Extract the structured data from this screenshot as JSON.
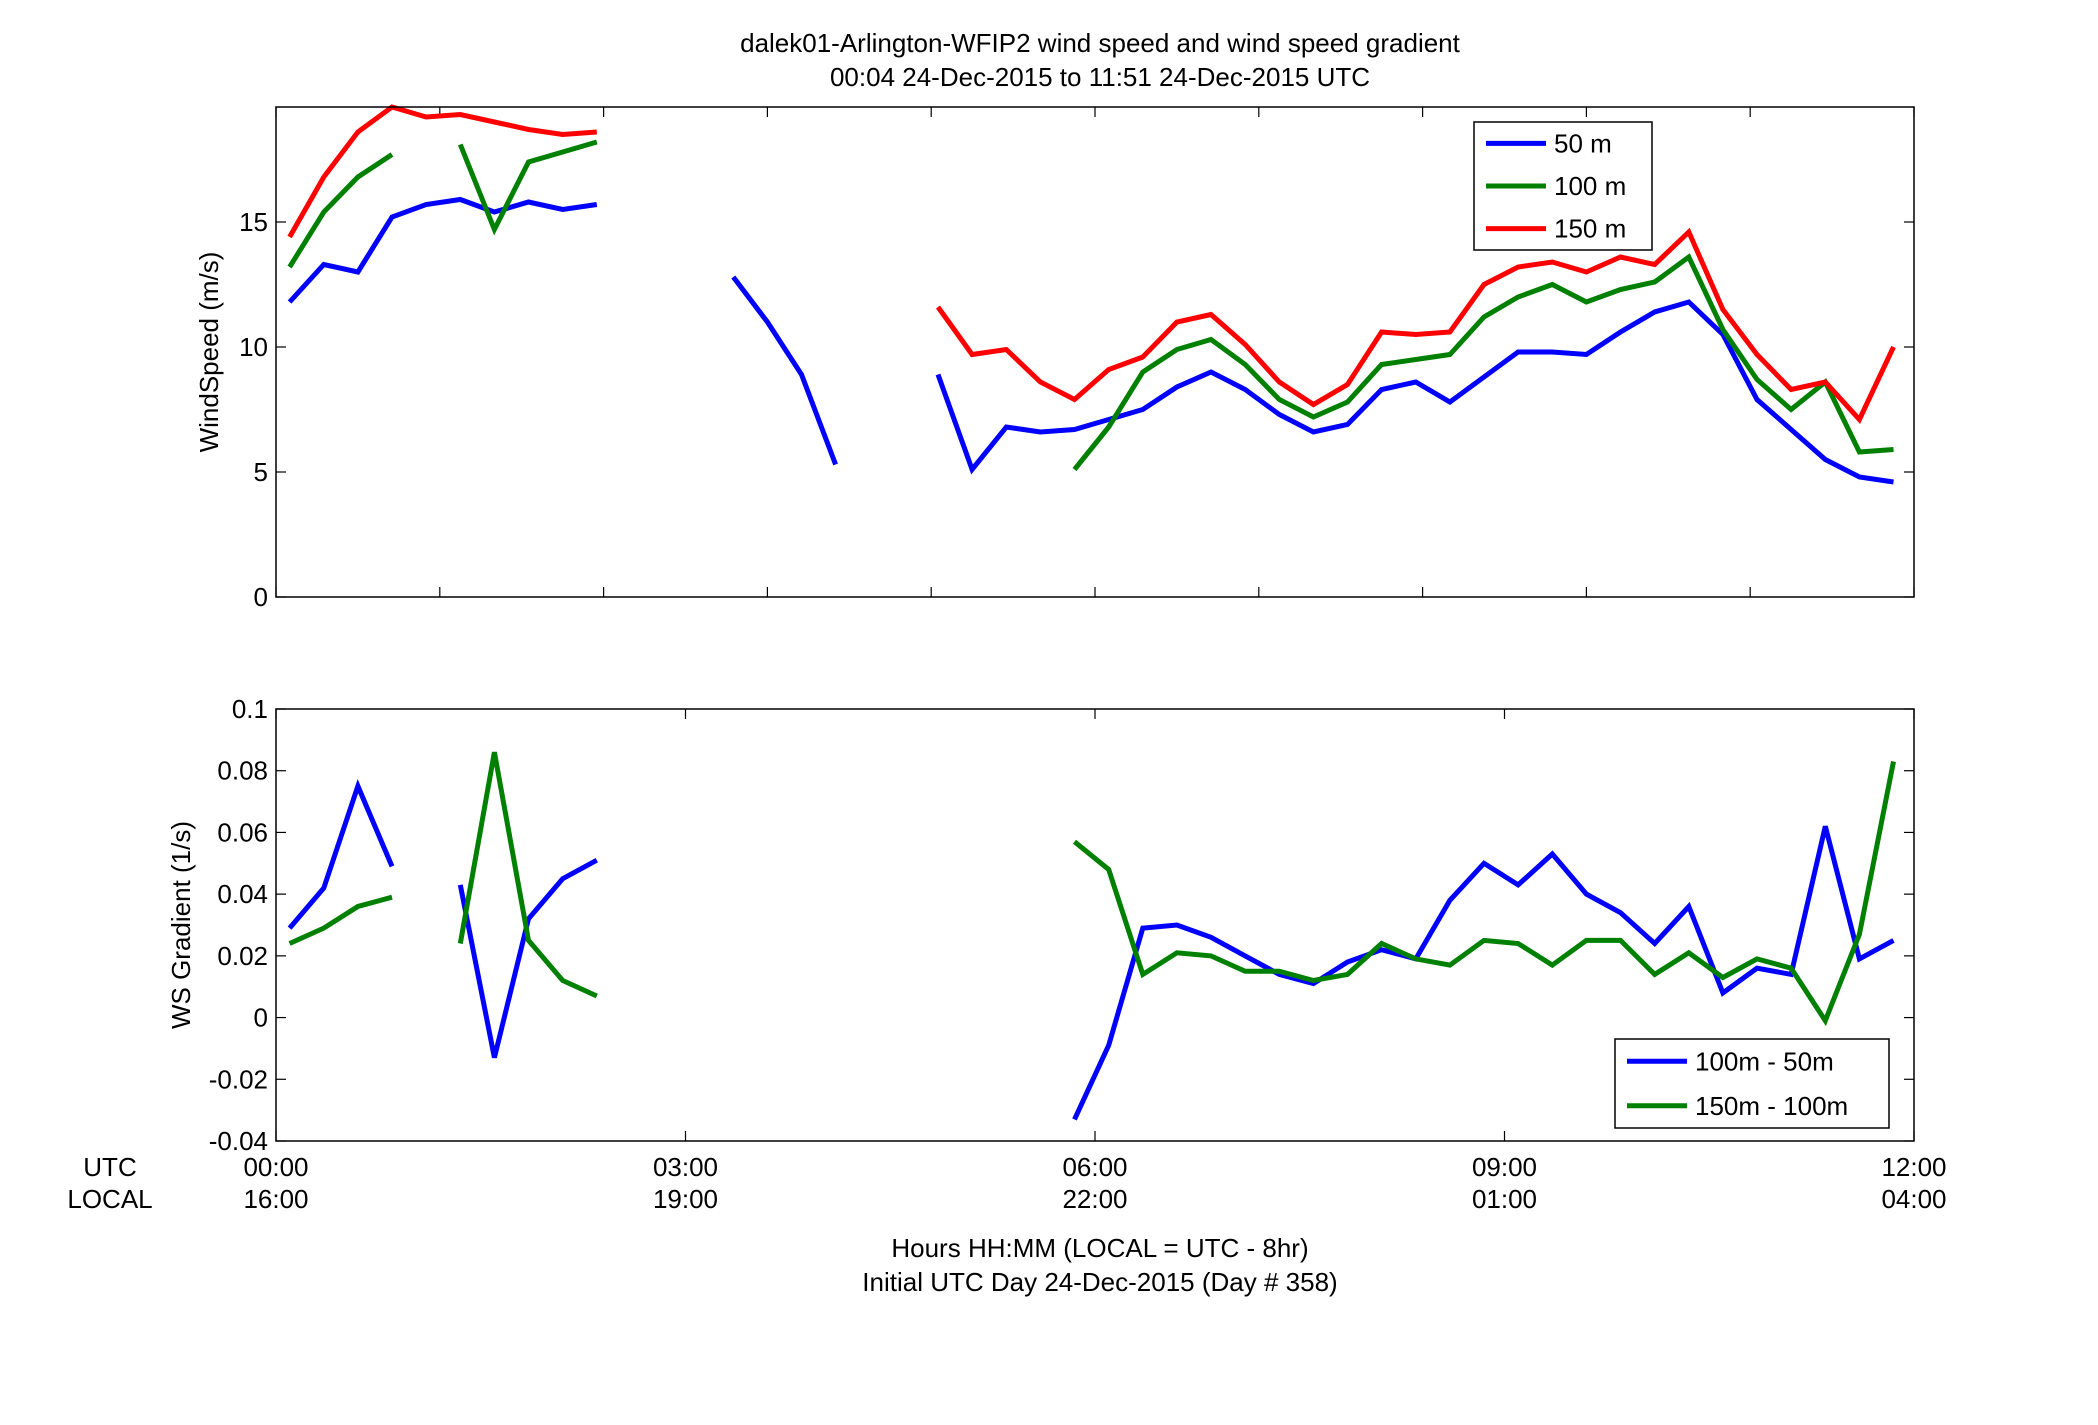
{
  "figure": {
    "title_line1": "dalek01-Arlington-WFIP2  wind speed and wind speed gradient",
    "title_line2": "00:04 24-Dec-2015 to 11:51 24-Dec-2015  UTC",
    "xlabel_line1": "Hours HH:MM  (LOCAL = UTC - 8hr)",
    "xlabel_line2": "Initial UTC Day 24-Dec-2015 (Day # 358)",
    "utc_label": "UTC",
    "local_label": "LOCAL",
    "x_ticks_utc": [
      "00:00",
      "03:00",
      "06:00",
      "09:00",
      "12:00"
    ],
    "x_ticks_local": [
      "16:00",
      "19:00",
      "22:00",
      "01:00",
      "04:00"
    ]
  },
  "chart_data": [
    {
      "type": "line",
      "ylabel": "WindSpeed (m/s)",
      "ylim": [
        0,
        19.6
      ],
      "xlim": [
        0,
        12
      ],
      "yticks": [
        0,
        5,
        10,
        15
      ],
      "ytick_labels": [
        "0",
        "5",
        "10",
        "15"
      ],
      "x_ticks_minor": [
        0,
        1.2,
        2.4,
        3.6,
        4.8,
        6,
        7.2,
        8.4,
        9.6,
        10.8,
        12
      ],
      "legend_position": "top-right",
      "grid": false,
      "x": [
        0.1,
        0.35,
        0.6,
        0.85,
        1.1,
        1.35,
        1.6,
        1.85,
        2.1,
        2.35,
        2.6,
        2.85,
        3.1,
        3.35,
        3.6,
        3.85,
        4.1,
        4.35,
        4.6,
        4.85,
        5.1,
        5.35,
        5.6,
        5.85,
        6.1,
        6.35,
        6.6,
        6.85,
        7.1,
        7.35,
        7.6,
        7.85,
        8.1,
        8.35,
        8.6,
        8.85,
        9.1,
        9.35,
        9.6,
        9.85,
        10.1,
        10.35,
        10.6,
        10.85,
        11.1,
        11.35,
        11.6,
        11.85
      ],
      "series": [
        {
          "name": "50 m",
          "color": "#0000ff",
          "values": [
            11.8,
            13.3,
            13.0,
            15.2,
            15.7,
            15.9,
            15.4,
            15.8,
            15.5,
            15.7,
            null,
            null,
            null,
            12.8,
            11.0,
            8.9,
            5.3,
            null,
            null,
            8.9,
            5.1,
            6.8,
            6.6,
            6.7,
            7.1,
            7.5,
            8.4,
            9.0,
            8.3,
            7.3,
            6.6,
            6.9,
            8.3,
            8.6,
            7.8,
            8.8,
            9.8,
            9.8,
            9.7,
            10.6,
            11.4,
            11.8,
            10.5,
            7.9,
            6.7,
            5.5,
            4.8,
            4.6
          ]
        },
        {
          "name": "100 m",
          "color": "#008000",
          "values": [
            13.2,
            15.4,
            16.8,
            17.7,
            null,
            18.1,
            14.7,
            17.4,
            17.8,
            18.2,
            null,
            null,
            null,
            null,
            null,
            null,
            null,
            null,
            null,
            null,
            null,
            null,
            null,
            5.1,
            6.8,
            9.0,
            9.9,
            10.3,
            9.3,
            7.9,
            7.2,
            7.8,
            9.3,
            9.5,
            9.7,
            11.2,
            12.0,
            12.5,
            11.8,
            12.3,
            12.6,
            13.6,
            10.7,
            8.7,
            7.5,
            8.6,
            5.8,
            5.9
          ]
        },
        {
          "name": "150 m",
          "color": "#ff0000",
          "values": [
            14.4,
            16.8,
            18.6,
            19.6,
            19.2,
            19.3,
            19.0,
            18.7,
            18.5,
            18.6,
            null,
            null,
            null,
            null,
            null,
            null,
            null,
            null,
            null,
            11.6,
            9.7,
            9.9,
            8.6,
            7.9,
            9.1,
            9.6,
            11.0,
            11.3,
            10.1,
            8.6,
            7.7,
            8.5,
            10.6,
            10.5,
            10.6,
            12.5,
            13.2,
            13.4,
            13.0,
            13.6,
            13.3,
            14.6,
            11.5,
            9.7,
            8.3,
            8.6,
            7.1,
            10.0
          ]
        }
      ]
    },
    {
      "type": "line",
      "ylabel": "WS Gradient (1/s)",
      "ylim": [
        -0.04,
        0.1
      ],
      "xlim": [
        0,
        12
      ],
      "yticks": [
        -0.04,
        -0.02,
        0,
        0.02,
        0.04,
        0.06,
        0.08,
        0.1
      ],
      "ytick_labels": [
        "-0.04",
        "-0.02",
        "0",
        "0.02",
        "0.04",
        "0.06",
        "0.08",
        "0.1"
      ],
      "x_ticks_major": [
        0,
        3,
        6,
        9,
        12
      ],
      "legend_position": "bottom-right",
      "grid": false,
      "x": [
        0.1,
        0.35,
        0.6,
        0.85,
        1.1,
        1.35,
        1.6,
        1.85,
        2.1,
        2.35,
        2.6,
        2.85,
        3.1,
        3.35,
        3.6,
        3.85,
        4.1,
        4.35,
        4.6,
        4.85,
        5.1,
        5.35,
        5.6,
        5.85,
        6.1,
        6.35,
        6.6,
        6.85,
        7.1,
        7.35,
        7.6,
        7.85,
        8.1,
        8.35,
        8.6,
        8.85,
        9.1,
        9.35,
        9.6,
        9.85,
        10.1,
        10.35,
        10.6,
        10.85,
        11.1,
        11.35,
        11.6,
        11.85
      ],
      "series": [
        {
          "name": "100m - 50m",
          "color": "#0000ff",
          "values": [
            0.029,
            0.042,
            0.075,
            0.049,
            null,
            0.043,
            -0.013,
            0.032,
            0.045,
            0.051,
            null,
            null,
            null,
            null,
            null,
            null,
            null,
            null,
            null,
            null,
            null,
            null,
            null,
            -0.033,
            -0.009,
            0.029,
            0.03,
            0.026,
            0.02,
            0.014,
            0.011,
            0.018,
            0.022,
            0.019,
            0.038,
            0.05,
            0.043,
            0.053,
            0.04,
            0.034,
            0.024,
            0.036,
            0.008,
            0.016,
            0.014,
            0.062,
            0.019,
            0.025
          ]
        },
        {
          "name": "150m - 100m",
          "color": "#008000",
          "values": [
            0.024,
            0.029,
            0.036,
            0.039,
            null,
            0.024,
            0.086,
            0.025,
            0.012,
            0.007,
            null,
            null,
            null,
            null,
            null,
            null,
            null,
            null,
            null,
            null,
            null,
            null,
            null,
            0.057,
            0.048,
            0.014,
            0.021,
            0.02,
            0.015,
            0.015,
            0.012,
            0.014,
            0.024,
            0.019,
            0.017,
            0.025,
            0.024,
            0.017,
            0.025,
            0.025,
            0.014,
            0.021,
            0.013,
            0.019,
            0.016,
            -0.001,
            0.027,
            0.083
          ]
        }
      ]
    }
  ]
}
